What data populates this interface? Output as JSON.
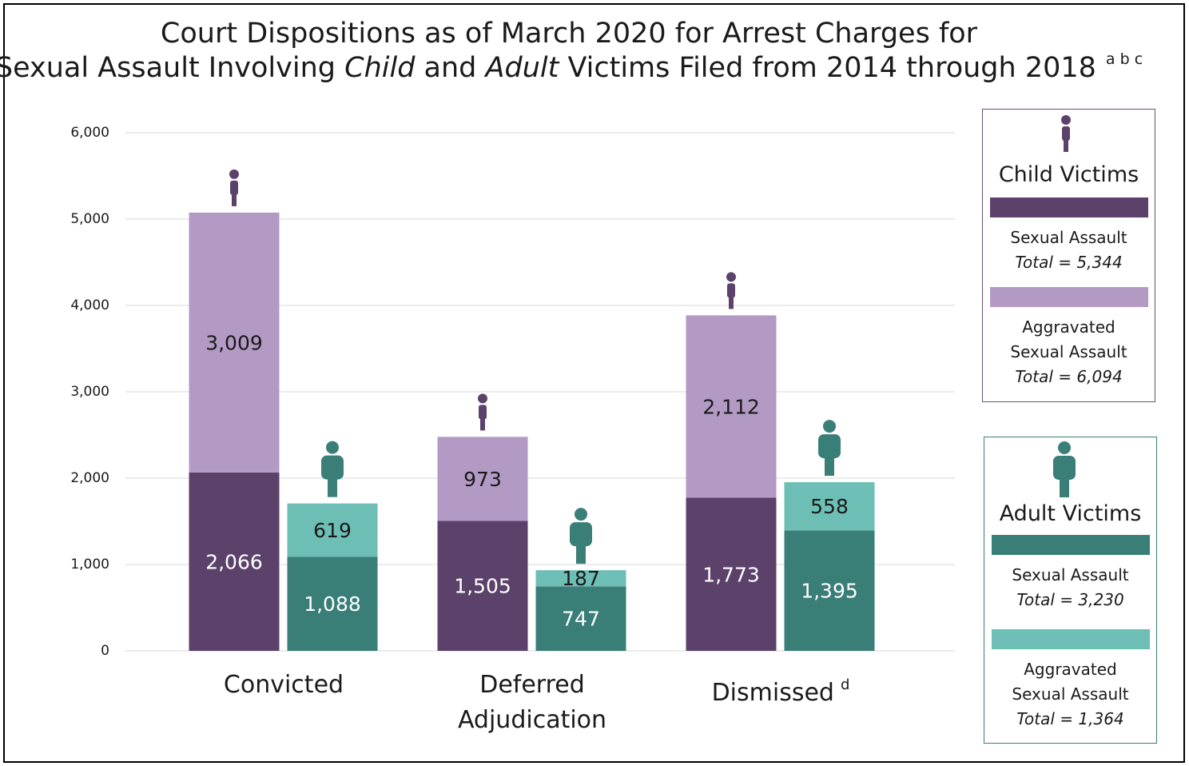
{
  "chart_data": {
    "type": "bar",
    "title": {
      "line1": "Court Dispositions as of March 2020 for Arrest Charges for",
      "line2_parts": [
        "Sexual Assault Involving ",
        "Child",
        " and ",
        "Adult",
        " Victims Filed from 2014 through 2018"
      ],
      "footnote": "a b c"
    },
    "categories": [
      "Convicted",
      "Deferred Adjudication",
      "Dismissed"
    ],
    "category_notes": [
      null,
      null,
      "d"
    ],
    "series": [
      {
        "name": "Sexual Assault",
        "group": "Child Victims",
        "color": "#5c426b",
        "label_color": "#ffffff",
        "total_label": "Total = 5,344",
        "values": [
          2066,
          1505,
          1773
        ],
        "value_labels": [
          "2,066",
          "1,505",
          "1,773"
        ]
      },
      {
        "name": "Aggravated Sexual Assault",
        "group": "Child Victims",
        "color": "#b39ac4",
        "label_color": "#1a1a1a",
        "total_label": "Total = 6,094",
        "values": [
          3009,
          973,
          2112
        ],
        "value_labels": [
          "3,009",
          "973",
          "2,112"
        ]
      },
      {
        "name": "Sexual Assault",
        "group": "Adult Victims",
        "color": "#3a7e78",
        "label_color": "#ffffff",
        "total_label": "Total = 3,230",
        "values": [
          1088,
          747,
          1395
        ],
        "value_labels": [
          "1,088",
          "747",
          "1,395"
        ]
      },
      {
        "name": "Aggravated Sexual Assault",
        "group": "Adult Victims",
        "color": "#6dbfb5",
        "label_color": "#1a1a1a",
        "total_label": "Total = 1,364",
        "values": [
          619,
          187,
          558
        ]
      }
    ],
    "ylim": [
      0,
      6000
    ],
    "yticks": [
      0,
      {
        "value": 1000,
        "label": "1,000"
      },
      {
        "value": 2000,
        "label": "2,000"
      },
      {
        "value": 3000,
        "label": "3,000"
      },
      {
        "value": 4000,
        "label": "4,000"
      },
      {
        "value": 5000,
        "label": "5,000"
      },
      {
        "value": 6000,
        "label": "6,000"
      }
    ],
    "grid": true
  }
}
